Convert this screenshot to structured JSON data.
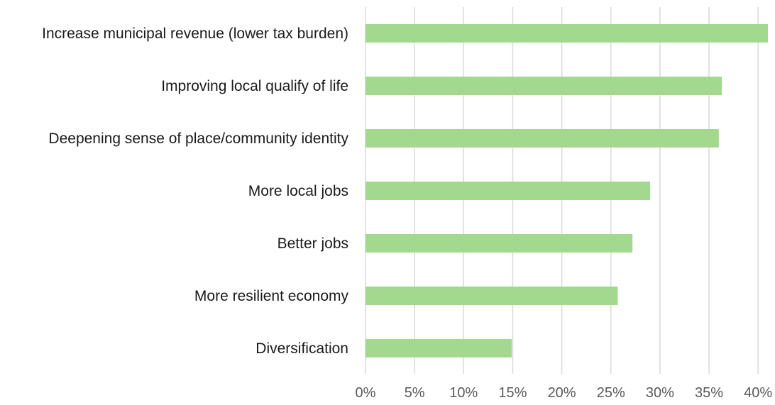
{
  "chart_data": {
    "type": "bar",
    "orientation": "horizontal",
    "title": "",
    "xlabel": "",
    "ylabel": "",
    "categories": [
      "Increase municipal revenue (lower tax burden)",
      "Improving local qualify of life",
      "Deepening sense of place/community identity",
      "More local jobs",
      "Better jobs",
      "More resilient economy",
      "Diversification"
    ],
    "values": [
      41.0,
      36.3,
      36.0,
      29.0,
      27.2,
      25.7,
      14.9
    ],
    "value_unit": "percent",
    "xlim": [
      0,
      41
    ],
    "x_ticks": [
      0,
      5,
      10,
      15,
      20,
      25,
      30,
      35,
      40
    ],
    "x_tick_labels": [
      "0%",
      "5%",
      "10%",
      "15%",
      "20%",
      "25%",
      "30%",
      "35%",
      "40%"
    ],
    "grid": true,
    "legend": "none",
    "bar_color": "#a3d98e"
  }
}
